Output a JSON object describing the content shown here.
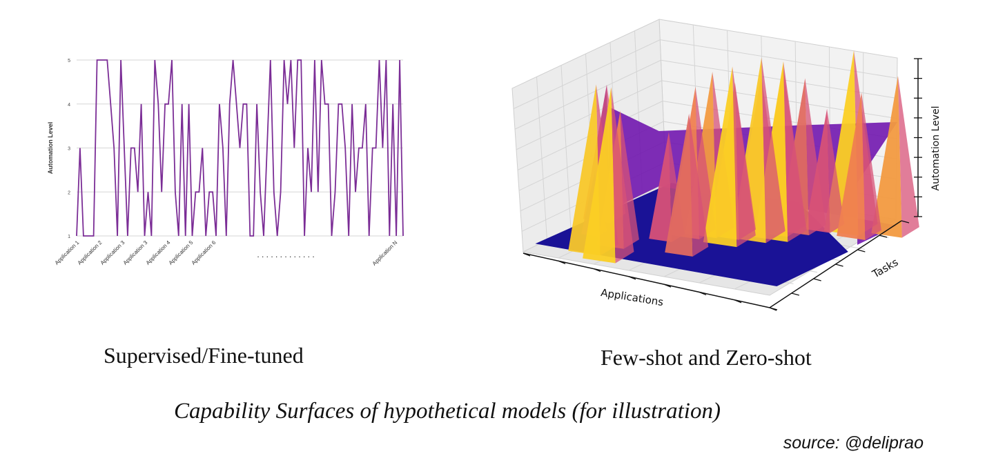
{
  "chart_data": [
    {
      "type": "line",
      "title": "Supervised/Fine-tuned",
      "ylabel": "Automation Level",
      "xlabel": "",
      "ylim": [
        1,
        5
      ],
      "yticks": [
        1,
        2,
        3,
        4,
        5
      ],
      "xtick_labels": [
        "Application 1",
        "Application 2",
        "Application 3",
        "Application 3",
        "Application 4",
        "Application 5",
        "Application 6",
        "Application N"
      ],
      "ellipsis": ". . . . . . . . . . . . .",
      "series": [
        {
          "name": "Automation Level",
          "color": "#7b2d96",
          "values": [
            1,
            3,
            1,
            1,
            1,
            1,
            5,
            5,
            5,
            5,
            4,
            3,
            1,
            5,
            3,
            1,
            3,
            3,
            2,
            4,
            1,
            2,
            1,
            5,
            4,
            2,
            4,
            4,
            5,
            2,
            1,
            4,
            1,
            4,
            1,
            2,
            2,
            3,
            1,
            2,
            2,
            1,
            4,
            3,
            1,
            4,
            5,
            4,
            3,
            4,
            4,
            1,
            1,
            4,
            2,
            1,
            3,
            5,
            2,
            1,
            2,
            5,
            4,
            5,
            3,
            5,
            5,
            1,
            3,
            2,
            5,
            2,
            5,
            4,
            4,
            1,
            2,
            4,
            4,
            3,
            1,
            4,
            2,
            3,
            3,
            4,
            1,
            3,
            3,
            5,
            3,
            5,
            1,
            4,
            1,
            5,
            1
          ]
        }
      ]
    },
    {
      "type": "surface3d",
      "title": "Few-shot and Zero-shot",
      "xlabel": "Applications",
      "ylabel": "Tasks",
      "zlabel": "Automation Level",
      "zlim": [
        1,
        5
      ],
      "colormap": [
        "#1a1296",
        "#6a0aab",
        "#b0328c",
        "#d75177",
        "#ef8050",
        "#f9b42a",
        "#f9d51e"
      ],
      "peaks": [
        {
          "app": 0.02,
          "task": 0.55,
          "value": 3.9,
          "color": "#c0407e"
        },
        {
          "app": 0.09,
          "task": 0.35,
          "value": 2.4,
          "color": "#7a12a5"
        },
        {
          "app": 0.18,
          "task": 0.2,
          "value": 4.6,
          "color": "#f9c82a"
        },
        {
          "app": 0.22,
          "task": 0.3,
          "value": 3.9,
          "color": "#ef8050"
        },
        {
          "app": 0.27,
          "task": 0.15,
          "value": 4.7,
          "color": "#fbcf24"
        },
        {
          "app": 0.33,
          "task": 0.45,
          "value": 3.3,
          "color": "#d75177"
        },
        {
          "app": 0.38,
          "task": 0.55,
          "value": 4.2,
          "color": "#ef8050"
        },
        {
          "app": 0.42,
          "task": 0.6,
          "value": 4.5,
          "color": "#f29a40"
        },
        {
          "app": 0.47,
          "task": 0.35,
          "value": 4.0,
          "color": "#e06a60"
        },
        {
          "app": 0.5,
          "task": 0.62,
          "value": 4.3,
          "color": "#f7b530"
        },
        {
          "app": 0.53,
          "task": 0.55,
          "value": 4.8,
          "color": "#fbcf24"
        },
        {
          "app": 0.56,
          "task": 0.7,
          "value": 4.4,
          "color": "#f0904a"
        },
        {
          "app": 0.59,
          "task": 0.65,
          "value": 4.9,
          "color": "#f9c82a"
        },
        {
          "app": 0.62,
          "task": 0.75,
          "value": 4.6,
          "color": "#ef8050"
        },
        {
          "app": 0.65,
          "task": 0.7,
          "value": 4.8,
          "color": "#fbcf24"
        },
        {
          "app": 0.68,
          "task": 0.8,
          "value": 4.3,
          "color": "#e06a60"
        },
        {
          "app": 0.74,
          "task": 0.85,
          "value": 3.6,
          "color": "#d75177"
        },
        {
          "app": 0.82,
          "task": 0.9,
          "value": 4.9,
          "color": "#fbcf24"
        },
        {
          "app": 0.88,
          "task": 0.85,
          "value": 4.1,
          "color": "#ef8050"
        },
        {
          "app": 0.97,
          "task": 0.95,
          "value": 4.4,
          "color": "#f29a40"
        }
      ]
    }
  ],
  "captions": {
    "left": "Supervised/Fine-tuned",
    "right": "Few-shot and Zero-shot",
    "main": "Capability Surfaces of hypothetical models (for illustration)",
    "source": "source: @deliprao"
  }
}
